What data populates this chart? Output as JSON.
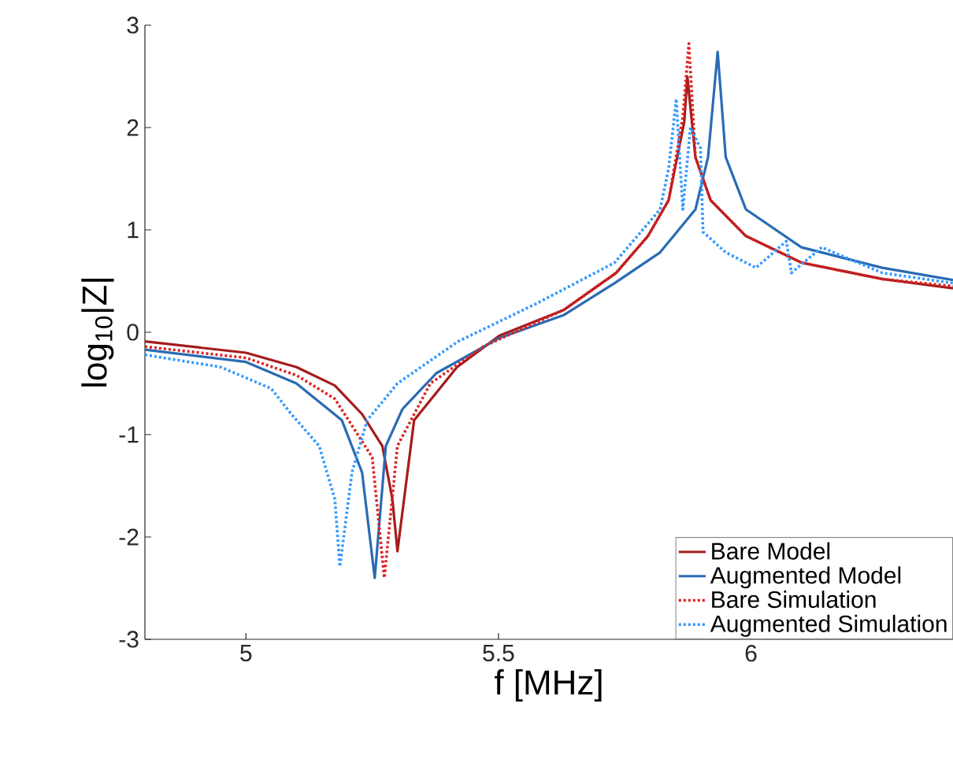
{
  "chart_data": {
    "type": "line",
    "xlabel": "f [MHz]",
    "ylabel": "log$_{10}$|Z|",
    "xlim": [
      4.8,
      6.4
    ],
    "ylim": [
      -3,
      3
    ],
    "xticks": [
      5,
      5.5,
      6
    ],
    "yticks": [
      -3,
      -2,
      -1,
      0,
      1,
      2,
      3
    ],
    "grid": false,
    "legend": "bottom right",
    "series": [
      {
        "name": "Bare Model",
        "color": "#a51c1c",
        "line_style": "solid",
        "x": [
          4.8,
          5.0,
          5.1,
          5.176,
          5.23,
          5.27,
          5.29,
          5.3,
          5.333,
          5.418,
          5.503,
          5.63,
          5.733,
          5.796,
          5.837,
          5.868,
          5.874,
          5.89,
          5.92,
          5.99,
          6.1,
          6.26,
          6.4
        ],
        "values": [
          -0.09,
          -0.2,
          -0.34,
          -0.52,
          -0.8,
          -1.11,
          -1.63,
          -2.14,
          -0.86,
          -0.34,
          -0.03,
          0.22,
          0.58,
          0.94,
          1.29,
          2.06,
          2.5,
          1.71,
          1.29,
          0.94,
          0.68,
          0.52,
          0.43
        ]
      },
      {
        "name": "Augmented Model",
        "color": "#2a6bb3",
        "line_style": "solid",
        "x": [
          4.8,
          5.0,
          5.1,
          5.19,
          5.23,
          5.255,
          5.277,
          5.31,
          5.377,
          5.5,
          5.63,
          5.73,
          5.82,
          5.89,
          5.915,
          5.934,
          5.95,
          5.99,
          6.1,
          6.26,
          6.4
        ],
        "values": [
          -0.17,
          -0.29,
          -0.5,
          -0.86,
          -1.37,
          -2.4,
          -1.11,
          -0.75,
          -0.4,
          -0.06,
          0.17,
          0.48,
          0.78,
          1.2,
          1.71,
          2.74,
          1.71,
          1.2,
          0.83,
          0.63,
          0.51
        ]
      },
      {
        "name": "Bare Simulation",
        "color": "#dd2222",
        "line_style": "dotted",
        "x": [
          4.8,
          5.0,
          5.1,
          5.176,
          5.25,
          5.274,
          5.3,
          5.365,
          5.47,
          5.63,
          5.733,
          5.796,
          5.837,
          5.865,
          5.877,
          5.89,
          5.92,
          5.99,
          6.1,
          6.26,
          6.4
        ],
        "values": [
          -0.14,
          -0.25,
          -0.42,
          -0.65,
          -1.22,
          -2.4,
          -1.11,
          -0.5,
          -0.14,
          0.22,
          0.58,
          0.94,
          1.29,
          2.1,
          2.82,
          1.71,
          1.29,
          0.94,
          0.68,
          0.52,
          0.45
        ]
      },
      {
        "name": "Augmented Simulation",
        "color": "#3399ff",
        "line_style": "dotted",
        "x": [
          4.8,
          4.95,
          5.05,
          5.09,
          5.145,
          5.176,
          5.186,
          5.21,
          5.24,
          5.3,
          5.42,
          5.575,
          5.73,
          5.82,
          5.837,
          5.852,
          5.865,
          5.88,
          5.9,
          5.905,
          5.95,
          6.01,
          6.07,
          6.08,
          6.14,
          6.26,
          6.4
        ],
        "values": [
          -0.22,
          -0.34,
          -0.55,
          -0.8,
          -1.11,
          -1.63,
          -2.29,
          -1.37,
          -0.86,
          -0.5,
          -0.09,
          0.28,
          0.68,
          1.2,
          1.6,
          2.28,
          1.2,
          2.0,
          1.8,
          0.98,
          0.78,
          0.63,
          0.89,
          0.58,
          0.83,
          0.58,
          0.48
        ]
      }
    ]
  }
}
